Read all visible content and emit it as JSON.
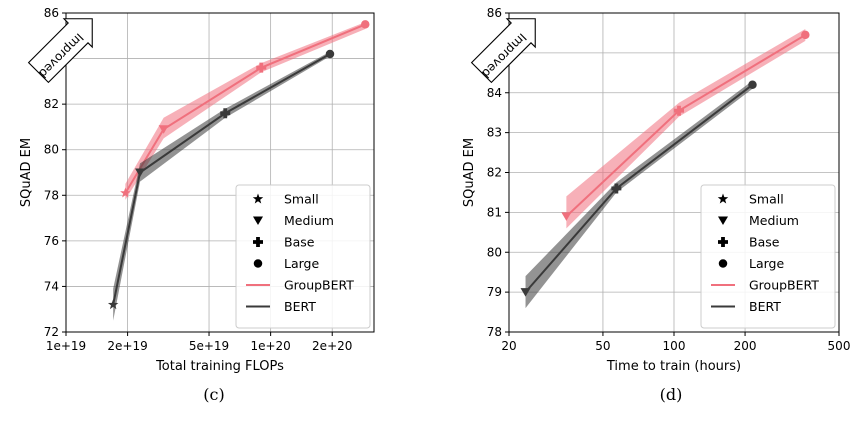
{
  "chart_data": [
    {
      "type": "line",
      "caption": "(c)",
      "xlabel": "Total training FLOPs",
      "ylabel": "SQuAD EM",
      "xscale": "log",
      "xlim": [
        1e+19,
        3.2e+20
      ],
      "ylim": [
        72,
        86
      ],
      "xticks": [
        {
          "value": 1e+19,
          "label": "1e+19"
        },
        {
          "value": 2e+19,
          "label": "2e+19"
        },
        {
          "value": 5e+19,
          "label": "5e+19"
        },
        {
          "value": 1e+20,
          "label": "1e+20"
        },
        {
          "value": 2e+20,
          "label": "2e+20"
        }
      ],
      "yticks": [
        72,
        74,
        76,
        78,
        80,
        82,
        84,
        86
      ],
      "grid": true,
      "annotation": "Improved",
      "legend_placement": "lower-right",
      "series": [
        {
          "name": "GroupBERT",
          "color": "#f0707d",
          "x": [
            1.95e+19,
            3e+19,
            9e+19,
            2.9e+20
          ],
          "y": [
            78.1,
            80.9,
            83.6,
            85.5
          ],
          "y_low": [
            77.8,
            80.5,
            83.4,
            85.3
          ],
          "y_high": [
            78.5,
            81.4,
            83.8,
            85.6
          ]
        },
        {
          "name": "BERT",
          "color": "#3a3a3a",
          "x": [
            1.7e+19,
            2.3e+19,
            6e+19,
            1.95e+20
          ],
          "y": [
            73.2,
            79.0,
            81.6,
            84.2
          ],
          "y_low": [
            72.5,
            78.6,
            81.4,
            84.1
          ],
          "y_high": [
            73.9,
            79.4,
            81.8,
            84.3
          ]
        }
      ],
      "size_legend": [
        "Small",
        "Medium",
        "Base",
        "Large"
      ]
    },
    {
      "type": "line",
      "caption": "(d)",
      "xlabel": "Time to train (hours)",
      "ylabel": "SQuAD EM",
      "xscale": "log",
      "xlim": [
        20,
        500
      ],
      "ylim": [
        78,
        86
      ],
      "xticks": [
        {
          "value": 20,
          "label": "20"
        },
        {
          "value": 50,
          "label": "50"
        },
        {
          "value": 100,
          "label": "100"
        },
        {
          "value": 200,
          "label": "200"
        },
        {
          "value": 500,
          "label": "500"
        }
      ],
      "yticks": [
        78,
        79,
        80,
        81,
        82,
        83,
        84,
        85,
        86
      ],
      "grid": true,
      "annotation": "Improved",
      "legend_placement": "lower-right",
      "series": [
        {
          "name": "GroupBERT",
          "color": "#f0707d",
          "x": [
            35,
            105,
            360
          ],
          "y": [
            80.9,
            83.55,
            85.45
          ],
          "y_low": [
            80.6,
            83.4,
            85.3
          ],
          "y_high": [
            81.4,
            83.75,
            85.6
          ]
        },
        {
          "name": "BERT",
          "color": "#3a3a3a",
          "x": [
            23.5,
            57,
            215
          ],
          "y": [
            79.0,
            81.6,
            84.2
          ],
          "y_low": [
            78.6,
            81.5,
            84.1
          ],
          "y_high": [
            79.4,
            81.75,
            84.3
          ]
        }
      ],
      "size_legend": [
        "Small",
        "Medium",
        "Base",
        "Large"
      ]
    }
  ]
}
